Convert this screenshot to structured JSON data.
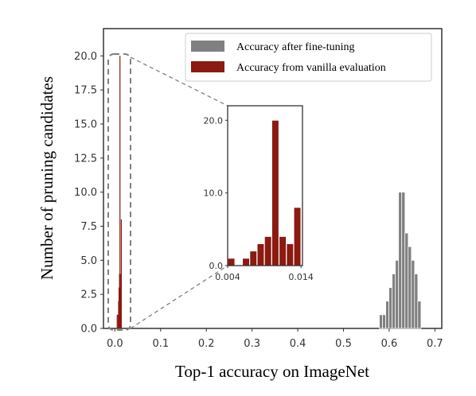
{
  "chart_data": {
    "type": "bar",
    "xlabel": "Top-1 accuracy on ImageNet",
    "ylabel": "Number of pruning candidates",
    "xlim": [
      -0.025,
      0.715
    ],
    "ylim": [
      0,
      22
    ],
    "x_ticks": [
      "0.0",
      "0.1",
      "0.2",
      "0.3",
      "0.4",
      "0.5",
      "0.6",
      "0.7"
    ],
    "y_ticks": [
      "0.0",
      "2.5",
      "5.0",
      "7.5",
      "10.0",
      "12.5",
      "15.0",
      "17.5",
      "20.0"
    ],
    "legend": {
      "position": "top-right",
      "entries": [
        "Accuracy after fine-tuning",
        "Accuracy from vanilla evaluation"
      ]
    },
    "grid": false,
    "series": [
      {
        "name": "Accuracy after fine-tuning",
        "color": "#808080",
        "bar_width": 0.0072,
        "x": [
          0.582,
          0.589,
          0.596,
          0.603,
          0.61,
          0.617,
          0.624,
          0.631,
          0.638,
          0.645,
          0.652,
          0.659,
          0.666
        ],
        "values": [
          1,
          1,
          2,
          3,
          4,
          5,
          10,
          10,
          7,
          6,
          5,
          4,
          2
        ]
      },
      {
        "name": "Accuracy from vanilla evaluation",
        "color": "#8b1a10",
        "bar_width": 0.00095,
        "x": [
          0.0045,
          0.0065,
          0.0075,
          0.0085,
          0.0095,
          0.0105,
          0.0115,
          0.0125,
          0.0135
        ],
        "values": [
          1,
          1,
          2,
          3,
          4,
          20,
          4,
          3,
          8
        ]
      }
    ],
    "inset": {
      "xlim": [
        0.004,
        0.0142
      ],
      "ylim": [
        0,
        22
      ],
      "x_ticks": [
        "0.004",
        "0.014"
      ],
      "y_ticks": [
        "0.0",
        "10.0",
        "20.0"
      ]
    }
  }
}
